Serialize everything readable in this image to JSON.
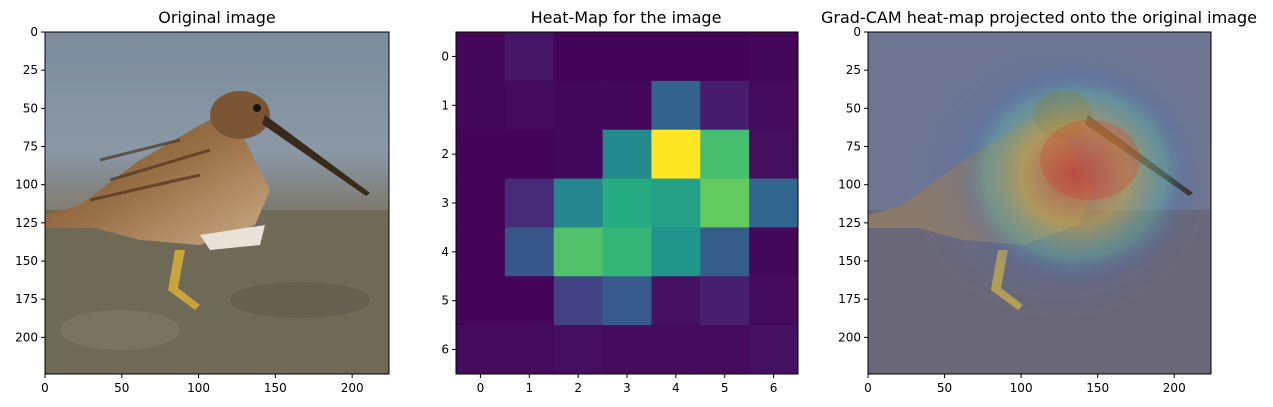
{
  "chart_data": [
    {
      "type": "image",
      "title": "Original image",
      "content": "photo of a snipe (wading bird) standing on a muddy shore",
      "xlim": [
        0,
        224
      ],
      "ylim": [
        224,
        0
      ],
      "x_ticks": [
        "0",
        "50",
        "100",
        "150",
        "200"
      ],
      "y_ticks": [
        "0",
        "25",
        "50",
        "75",
        "100",
        "125",
        "150",
        "175",
        "200"
      ]
    },
    {
      "type": "heatmap",
      "title": "Heat-Map for the image",
      "colormap": "viridis",
      "x_ticks": [
        "0",
        "1",
        "2",
        "3",
        "4",
        "5",
        "6"
      ],
      "y_ticks": [
        "0",
        "1",
        "2",
        "3",
        "4",
        "5",
        "6"
      ],
      "values": [
        [
          0.02,
          0.06,
          0.01,
          0.01,
          0.01,
          0.01,
          0.02
        ],
        [
          0.02,
          0.03,
          0.02,
          0.02,
          0.32,
          0.08,
          0.03
        ],
        [
          0.01,
          0.01,
          0.02,
          0.47,
          1.0,
          0.7,
          0.04
        ],
        [
          0.01,
          0.12,
          0.46,
          0.62,
          0.57,
          0.76,
          0.33
        ],
        [
          0.01,
          0.27,
          0.72,
          0.66,
          0.52,
          0.3,
          0.02
        ],
        [
          0.01,
          0.01,
          0.2,
          0.28,
          0.05,
          0.09,
          0.03
        ],
        [
          0.03,
          0.03,
          0.04,
          0.03,
          0.03,
          0.03,
          0.05
        ]
      ]
    },
    {
      "type": "image",
      "title": "Grad-CAM heat-map projected onto the original image",
      "content": "the bird photo with a blurred jet-colormap Grad-CAM overlay centred on the bird's head and body",
      "xlim": [
        0,
        224
      ],
      "ylim": [
        224,
        0
      ],
      "x_ticks": [
        "0",
        "50",
        "100",
        "150",
        "200"
      ],
      "y_ticks": [
        "0",
        "25",
        "50",
        "75",
        "100",
        "125",
        "150",
        "175",
        "200"
      ]
    }
  ]
}
